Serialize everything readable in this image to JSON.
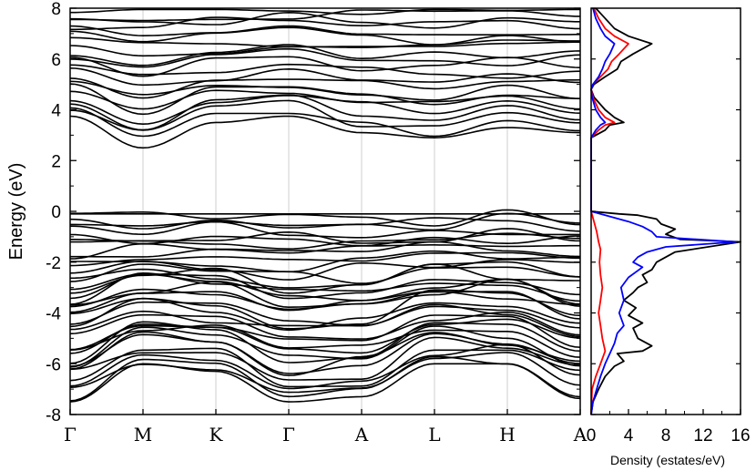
{
  "chart_data": [
    {
      "type": "line",
      "subtype": "band-structure",
      "title": "",
      "xlabel": "",
      "ylabel": "Energy (eV)",
      "ylim": [
        -8,
        8
      ],
      "yticks": [
        -8,
        -6,
        -4,
        -2,
        0,
        2,
        4,
        6,
        8
      ],
      "kpoints": [
        "Γ",
        "M",
        "K",
        "Γ",
        "A",
        "L",
        "H",
        "A"
      ],
      "grid": "vertical lines at high-symmetry points",
      "line_color": "#000000",
      "band_minima_at_kpoints": {
        "conduction": [
          3.75,
          2.5,
          3.5,
          3.75,
          3.1,
          2.9,
          3.3,
          3.1
        ],
        "valence": [
          -7.5,
          -6.0,
          -6.3,
          -7.5,
          -7.3,
          -6.0,
          -6.0,
          -7.3
        ]
      },
      "conduction_band_max_eV": 8,
      "valence_band_max_eV": -0.1,
      "band_gap_region_eV": [
        0,
        2.5
      ]
    },
    {
      "type": "line",
      "subtype": "density-of-states",
      "title": "",
      "xlabel": "Density (estates/eV)",
      "ylabel": "",
      "xlim": [
        0,
        16
      ],
      "xticks": [
        0,
        4,
        8,
        12,
        16
      ],
      "ylim": [
        -8,
        8
      ],
      "series": [
        {
          "color": "#000000",
          "points": [
            [
              0,
              -8
            ],
            [
              0.2,
              -7.5
            ],
            [
              0.8,
              -7.0
            ],
            [
              1.5,
              -6.5
            ],
            [
              2.5,
              -6.1
            ],
            [
              3.5,
              -5.9
            ],
            [
              2.8,
              -5.6
            ],
            [
              5.5,
              -5.5
            ],
            [
              6.5,
              -5.3
            ],
            [
              5.0,
              -5.0
            ],
            [
              4.5,
              -4.6
            ],
            [
              5.5,
              -4.4
            ],
            [
              4.0,
              -4.1
            ],
            [
              4.8,
              -3.8
            ],
            [
              3.5,
              -3.5
            ],
            [
              4.5,
              -3.2
            ],
            [
              5.0,
              -3.0
            ],
            [
              6.0,
              -2.8
            ],
            [
              5.5,
              -2.5
            ],
            [
              6.5,
              -2.3
            ],
            [
              7.0,
              -2.0
            ],
            [
              8.0,
              -1.8
            ],
            [
              9.0,
              -1.6
            ],
            [
              16.0,
              -1.2
            ],
            [
              9.5,
              -1.1
            ],
            [
              8.0,
              -0.9
            ],
            [
              9.0,
              -0.7
            ],
            [
              7.5,
              -0.5
            ],
            [
              7.0,
              -0.3
            ],
            [
              5.0,
              -0.15
            ],
            [
              3.0,
              -0.1
            ],
            [
              0,
              0
            ],
            [
              0,
              2.5
            ],
            [
              0,
              2.9
            ],
            [
              1.5,
              3.2
            ],
            [
              2.0,
              3.4
            ],
            [
              3.5,
              3.5
            ],
            [
              2.5,
              3.7
            ],
            [
              1.5,
              4.0
            ],
            [
              0.3,
              4.5
            ],
            [
              0,
              4.8
            ],
            [
              0.3,
              5.0
            ],
            [
              1.5,
              5.3
            ],
            [
              2.8,
              5.6
            ],
            [
              3.2,
              5.9
            ],
            [
              4.5,
              6.2
            ],
            [
              6.5,
              6.6
            ],
            [
              4.0,
              6.9
            ],
            [
              2.5,
              7.2
            ],
            [
              1.5,
              7.6
            ],
            [
              0.5,
              8.0
            ]
          ]
        },
        {
          "color": "#ff0000",
          "points": [
            [
              0,
              -8
            ],
            [
              0.1,
              -7.0
            ],
            [
              0.5,
              -6.5
            ],
            [
              1.0,
              -6.0
            ],
            [
              1.5,
              -5.5
            ],
            [
              1.2,
              -5.0
            ],
            [
              1.0,
              -4.5
            ],
            [
              0.8,
              -4.0
            ],
            [
              1.0,
              -3.5
            ],
            [
              1.2,
              -3.0
            ],
            [
              1.0,
              -2.5
            ],
            [
              0.9,
              -2.0
            ],
            [
              1.0,
              -1.5
            ],
            [
              0.8,
              -1.2
            ],
            [
              0.6,
              -0.8
            ],
            [
              0.3,
              -0.4
            ],
            [
              0,
              0
            ],
            [
              0,
              2.5
            ],
            [
              0,
              2.9
            ],
            [
              0.8,
              3.2
            ],
            [
              1.5,
              3.4
            ],
            [
              2.5,
              3.5
            ],
            [
              1.5,
              3.7
            ],
            [
              0.8,
              4.0
            ],
            [
              0.2,
              4.5
            ],
            [
              0,
              4.8
            ],
            [
              0.2,
              5.0
            ],
            [
              1.0,
              5.3
            ],
            [
              1.8,
              5.6
            ],
            [
              2.2,
              5.9
            ],
            [
              3.0,
              6.2
            ],
            [
              4.0,
              6.6
            ],
            [
              2.5,
              6.9
            ],
            [
              1.5,
              7.2
            ],
            [
              0.8,
              7.6
            ],
            [
              0.3,
              8.0
            ]
          ]
        },
        {
          "color": "#0000ff",
          "points": [
            [
              0,
              -8
            ],
            [
              0.2,
              -7.5
            ],
            [
              0.6,
              -7.0
            ],
            [
              1.0,
              -6.5
            ],
            [
              1.5,
              -6.0
            ],
            [
              2.0,
              -5.6
            ],
            [
              2.5,
              -5.2
            ],
            [
              2.8,
              -4.8
            ],
            [
              3.5,
              -4.5
            ],
            [
              3.0,
              -4.0
            ],
            [
              3.5,
              -3.5
            ],
            [
              3.2,
              -3.0
            ],
            [
              4.0,
              -2.6
            ],
            [
              5.5,
              -2.2
            ],
            [
              4.5,
              -2.0
            ],
            [
              5.0,
              -1.8
            ],
            [
              6.0,
              -1.6
            ],
            [
              8.0,
              -1.4
            ],
            [
              15.5,
              -1.2
            ],
            [
              7.0,
              -1.0
            ],
            [
              6.5,
              -0.8
            ],
            [
              5.5,
              -0.6
            ],
            [
              4.0,
              -0.4
            ],
            [
              2.0,
              -0.2
            ],
            [
              0,
              0
            ],
            [
              0,
              2.5
            ],
            [
              0,
              2.9
            ],
            [
              0.5,
              3.2
            ],
            [
              1.0,
              3.4
            ],
            [
              1.5,
              3.5
            ],
            [
              1.0,
              3.7
            ],
            [
              0.5,
              4.0
            ],
            [
              0.1,
              4.5
            ],
            [
              0,
              4.8
            ],
            [
              0.2,
              5.0
            ],
            [
              0.8,
              5.3
            ],
            [
              1.2,
              5.6
            ],
            [
              1.5,
              5.9
            ],
            [
              2.0,
              6.2
            ],
            [
              2.5,
              6.6
            ],
            [
              1.5,
              6.9
            ],
            [
              1.0,
              7.2
            ],
            [
              0.5,
              7.6
            ],
            [
              0.2,
              8.0
            ]
          ]
        }
      ]
    }
  ]
}
